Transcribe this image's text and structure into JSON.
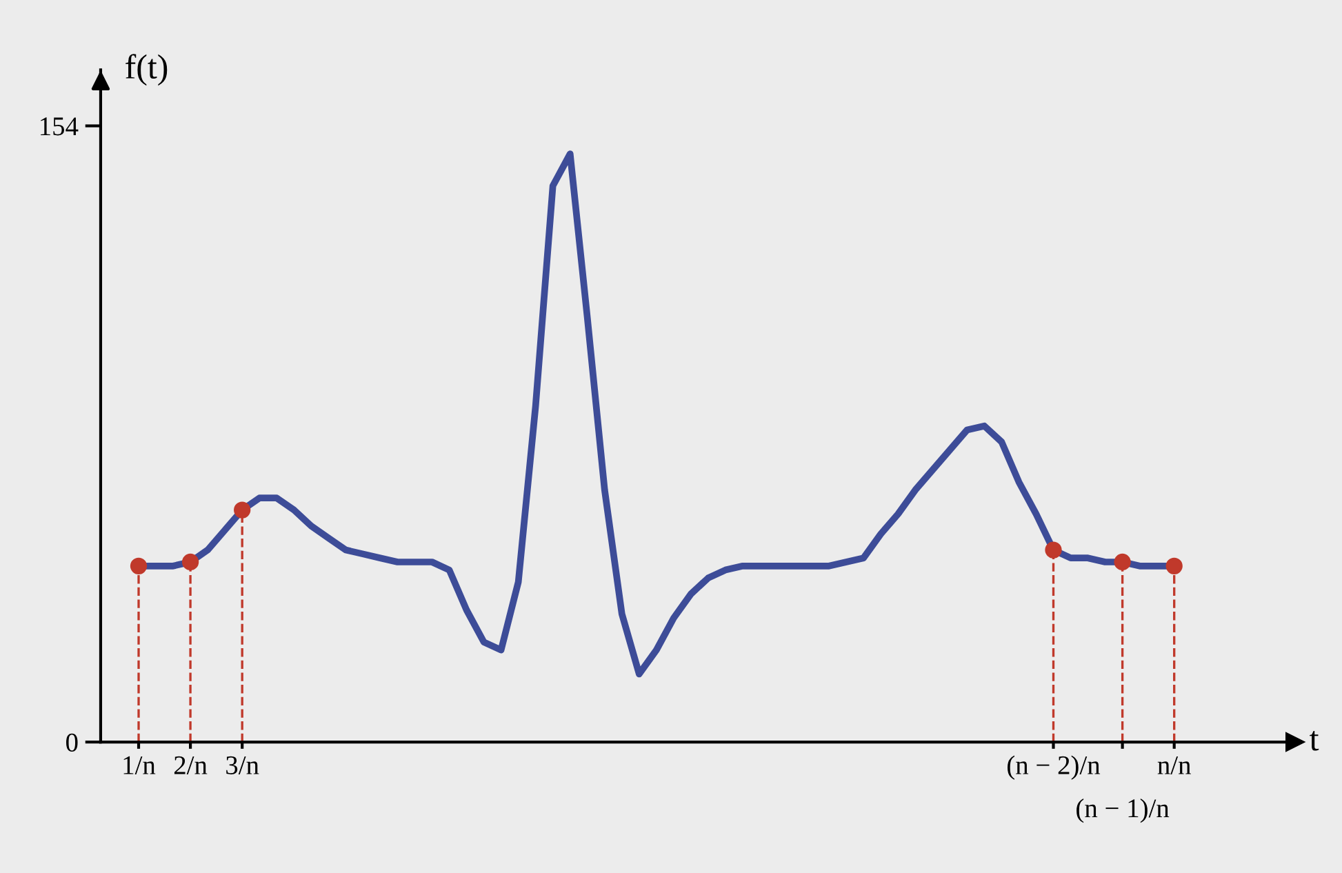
{
  "chart_data": {
    "type": "line",
    "xlabel": "t",
    "ylabel": "f(t)",
    "ylim": [
      0,
      168
    ],
    "yticks": [
      0,
      154
    ],
    "categories": [
      "1/n",
      null,
      null,
      "2/n",
      null,
      null,
      "3/n",
      null,
      null,
      null,
      null,
      null,
      null,
      null,
      null,
      null,
      null,
      null,
      null,
      null,
      null,
      null,
      null,
      null,
      null,
      null,
      null,
      null,
      null,
      null,
      null,
      null,
      null,
      null,
      null,
      null,
      null,
      null,
      null,
      null,
      null,
      null,
      null,
      null,
      null,
      null,
      null,
      null,
      null,
      null,
      null,
      null,
      null,
      "(n − 2)/n",
      null,
      null,
      null,
      "(n − 1)/n",
      null,
      null,
      "n/n"
    ],
    "grid": false,
    "legend": false,
    "series": [
      {
        "color": "#3d4c98",
        "marker": "none",
        "line_style": "solid",
        "values": [
          44,
          44,
          44,
          45,
          48,
          53,
          58,
          61,
          61,
          58,
          54,
          51,
          48,
          47,
          46,
          45,
          45,
          45,
          43,
          33,
          25,
          23,
          40,
          84,
          139,
          147,
          106,
          63,
          32,
          17,
          23,
          31,
          37,
          41,
          43,
          44,
          44,
          44,
          44,
          44,
          44,
          45,
          46,
          52,
          57,
          63,
          68,
          73,
          78,
          79,
          75,
          65,
          57,
          48,
          46,
          46,
          45,
          45,
          44,
          44,
          44
        ]
      },
      {
        "type": "lollipop",
        "color": "#c0392b",
        "marker": "circle",
        "line_style": "dashed",
        "values": [
          44,
          null,
          null,
          45,
          null,
          null,
          58,
          null,
          null,
          null,
          null,
          null,
          null,
          null,
          null,
          null,
          null,
          null,
          null,
          null,
          null,
          null,
          null,
          null,
          null,
          null,
          null,
          null,
          null,
          null,
          null,
          null,
          null,
          null,
          null,
          null,
          null,
          null,
          null,
          null,
          null,
          null,
          null,
          null,
          null,
          null,
          null,
          null,
          null,
          null,
          null,
          null,
          null,
          48,
          null,
          null,
          null,
          45,
          null,
          null,
          44
        ]
      }
    ]
  }
}
